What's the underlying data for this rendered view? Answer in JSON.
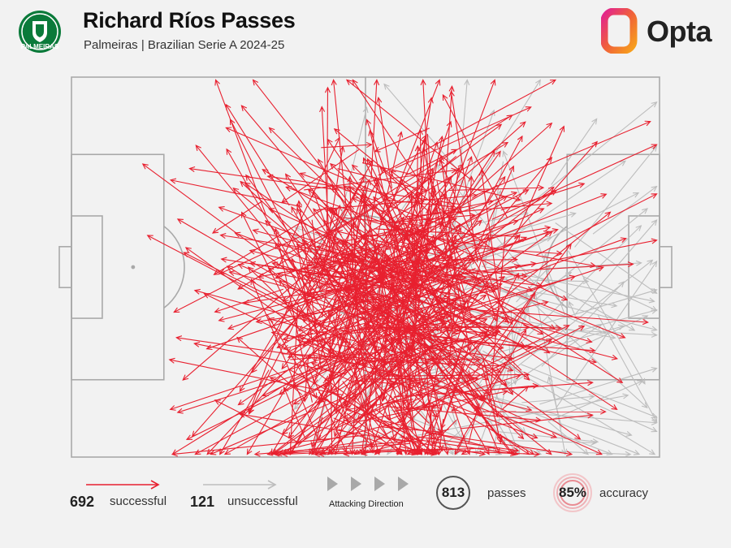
{
  "header": {
    "title": "Richard Ríos Passes",
    "subtitle": "Palmeiras | Brazilian Serie A 2024-25",
    "club_logo_text": "PALMEIRAS",
    "brand": "Opta"
  },
  "colors": {
    "successful": "#e8202f",
    "unsuccessful": "#bdbdbd",
    "pitch_line": "#a9a9a9",
    "background": "#f2f2f2"
  },
  "chart_data": {
    "type": "pass-map",
    "successful": 692,
    "unsuccessful": 121,
    "total": 813,
    "accuracy": "85%",
    "pitch": {
      "length": 105,
      "width": 68
    }
  },
  "legend": {
    "successful_count": "692",
    "successful_label": "successful",
    "unsuccessful_count": "121",
    "unsuccessful_label": "unsuccessful",
    "direction_label": "Attacking Direction",
    "passes_count": "813",
    "passes_label": "passes",
    "accuracy_value": "85%",
    "accuracy_label": "accuracy"
  }
}
